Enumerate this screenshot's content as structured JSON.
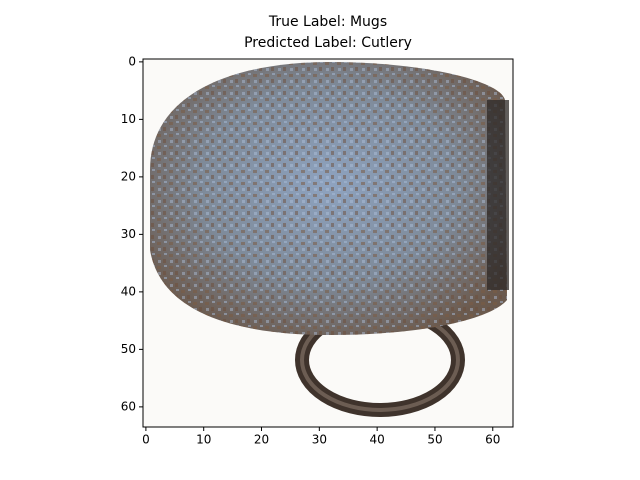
{
  "chart_data": {
    "type": "image",
    "title": "True Label: Mugs",
    "subtitle": "Predicted Label: Cutlery",
    "xlim": [
      -0.5,
      63.5
    ],
    "ylim": [
      63.5,
      -0.5
    ],
    "xticks": [
      0,
      10,
      20,
      30,
      40,
      50,
      60
    ],
    "yticks": [
      0,
      10,
      20,
      30,
      40,
      50,
      60
    ]
  }
}
